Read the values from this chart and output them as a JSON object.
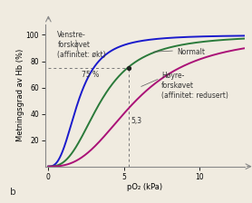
{
  "title": "",
  "xlabel": "pO₂ (kPa)",
  "ylabel": "Metningsgrad av Hb (%)",
  "xlim": [
    -0.2,
    13
  ],
  "ylim": [
    0,
    108
  ],
  "xticks": [
    0,
    5,
    10
  ],
  "yticks": [
    20,
    40,
    60,
    80,
    100
  ],
  "dashed_x": 5.3,
  "dashed_y": 75,
  "dot_x": 5.3,
  "dot_y": 75,
  "label_75": "75 %",
  "label_53": "5,3",
  "label_b": "b",
  "curves": {
    "left": {
      "color": "#1a1acc",
      "n": 2.7,
      "p50": 2.0
    },
    "normal": {
      "color": "#2a7a3a",
      "n": 2.7,
      "p50": 3.5
    },
    "right": {
      "color": "#aa1177",
      "n": 2.7,
      "p50": 5.8
    }
  },
  "bg_color": "#f0ebe0",
  "font_size": 6.0
}
